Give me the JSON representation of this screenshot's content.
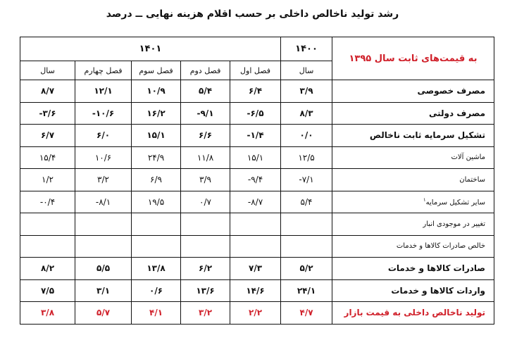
{
  "title": "رشد تولید ناخالص داخلی بر حسب اقلام هزینه نهایی ــ درصد",
  "header": {
    "base_label": "به قیمت‌های ثابت سال ۱۳۹۵",
    "year_1400": "۱۴۰۰",
    "year_1401": "۱۴۰۱",
    "sub": [
      "سال",
      "فصل اول",
      "فصل دوم",
      "فصل سوم",
      "فصل چهارم",
      "سال"
    ]
  },
  "colors": {
    "highlight": "#d0202a"
  },
  "rows": [
    {
      "label": "مصرف خصوصی",
      "values": [
        "۳/۹",
        "۶/۴",
        "۵/۴",
        "۱۰/۹",
        "۱۲/۱",
        "۸/۷"
      ]
    },
    {
      "label": "مصرف دولتی",
      "values": [
        "۸/۳",
        "-۶/۵",
        "-۹/۱",
        "۱۶/۲",
        "-۱۰/۶",
        "-۳/۶"
      ]
    },
    {
      "label": "تشکیل سرمایه ثابت ناخالص",
      "values": [
        "۰/۰",
        "-۱/۴",
        "۶/۶",
        "۱۵/۱",
        "۶/۰",
        "۶/۷"
      ]
    },
    {
      "label": "ماشین آلات",
      "values": [
        "۱۲/۵",
        "۱۵/۱",
        "۱۱/۸",
        "۲۴/۹",
        "۱۰/۶",
        "۱۵/۴"
      ]
    },
    {
      "label": "ساختمان",
      "values": [
        "-۷/۱",
        "-۹/۴",
        "۳/۹",
        "۶/۹",
        "۳/۲",
        "۱/۲"
      ]
    },
    {
      "label": "سایر تشکیل سرمایه",
      "footnote": "۱",
      "values": [
        "۵/۴",
        "-۸/۷",
        "۰/۷",
        "۱۹/۵",
        "-۸/۱",
        "-۰/۴"
      ]
    },
    {
      "label": "تغییر در موجودی انبار",
      "values": [
        "",
        "",
        "",
        "",
        "",
        ""
      ]
    },
    {
      "label": "خالص صادرات کالاها و خدمات",
      "values": [
        "",
        "",
        "",
        "",
        "",
        ""
      ]
    },
    {
      "label": "صادرات کالاها و خدمات",
      "values": [
        "۵/۲",
        "۷/۳",
        "۶/۲",
        "۱۳/۸",
        "۵/۵",
        "۸/۲"
      ]
    },
    {
      "label": "واردات کالاها و خدمات",
      "values": [
        "۲۴/۱",
        "۱۴/۶",
        "۱۳/۶",
        "۰/۶",
        "۳/۱",
        "۷/۵"
      ]
    },
    {
      "label": "تولید ناخالص داخلی به قیمت بازار",
      "values": [
        "۴/۷",
        "۲/۲",
        "۳/۲",
        "۴/۱",
        "۵/۷",
        "۳/۸"
      ]
    }
  ]
}
